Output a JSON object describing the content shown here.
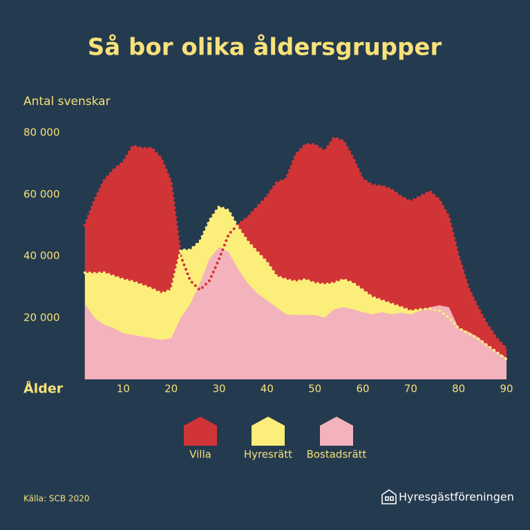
{
  "chart_data": {
    "type": "area",
    "title": "Så bor olika åldersgrupper",
    "y_label": "Antal svenskar",
    "x_label": "Ålder",
    "x": [
      2,
      4,
      6,
      8,
      10,
      12,
      14,
      16,
      18,
      20,
      22,
      24,
      26,
      28,
      30,
      32,
      34,
      36,
      38,
      40,
      42,
      44,
      46,
      48,
      50,
      52,
      54,
      56,
      58,
      60,
      62,
      64,
      66,
      68,
      70,
      72,
      74,
      76,
      78,
      80,
      82,
      84,
      86,
      88,
      90
    ],
    "series": [
      {
        "name": "Villa",
        "color": "#d13437",
        "values": [
          50000,
          58000,
          64500,
          68000,
          70500,
          75700,
          75000,
          75000,
          71500,
          64000,
          40000,
          32000,
          29000,
          32000,
          39000,
          47000,
          50300,
          52600,
          56000,
          59300,
          63800,
          65000,
          72800,
          76200,
          76200,
          74000,
          78400,
          77300,
          71700,
          65000,
          63000,
          62700,
          61600,
          59300,
          57800,
          59300,
          61000,
          58200,
          52600,
          40000,
          30000,
          23400,
          17800,
          13300,
          9900
        ]
      },
      {
        "name": "Hyresrätt",
        "color": "#fcee7b",
        "values": [
          34600,
          34400,
          34600,
          33500,
          32400,
          31700,
          30600,
          29400,
          27900,
          29000,
          42000,
          42000,
          44700,
          51500,
          56000,
          54800,
          49200,
          44700,
          41300,
          38000,
          33500,
          32400,
          31700,
          32400,
          31200,
          30800,
          31200,
          32400,
          31200,
          29000,
          26700,
          25600,
          24500,
          23400,
          22200,
          22700,
          22900,
          22200,
          20000,
          16600,
          15000,
          13300,
          11000,
          8800,
          6500
        ]
      },
      {
        "name": "Bostadsrätt",
        "color": "#f3b3bc",
        "values": [
          24500,
          20000,
          17800,
          16600,
          15000,
          14400,
          13900,
          13300,
          12800,
          13300,
          20000,
          24500,
          31200,
          39100,
          42900,
          41300,
          35700,
          31200,
          27900,
          25600,
          23400,
          21100,
          20900,
          20900,
          20900,
          20000,
          22700,
          23400,
          22700,
          21800,
          21100,
          21800,
          21100,
          21600,
          21100,
          22200,
          23400,
          24000,
          23400,
          16600,
          15500,
          13700,
          11000,
          8800,
          7000
        ]
      }
    ],
    "xlim": [
      0,
      90
    ],
    "xticks": [
      10,
      20,
      30,
      40,
      50,
      60,
      70,
      80,
      90
    ],
    "ylim": [
      0,
      80000
    ],
    "yticks": [
      {
        "value": 20000,
        "label": "20 000"
      },
      {
        "value": 40000,
        "label": "40 000"
      },
      {
        "value": 60000,
        "label": "60 000"
      },
      {
        "value": 80000,
        "label": "80 000"
      }
    ],
    "source": "Källa: SCB 2020",
    "logo": "Hyresgästföreningen"
  }
}
